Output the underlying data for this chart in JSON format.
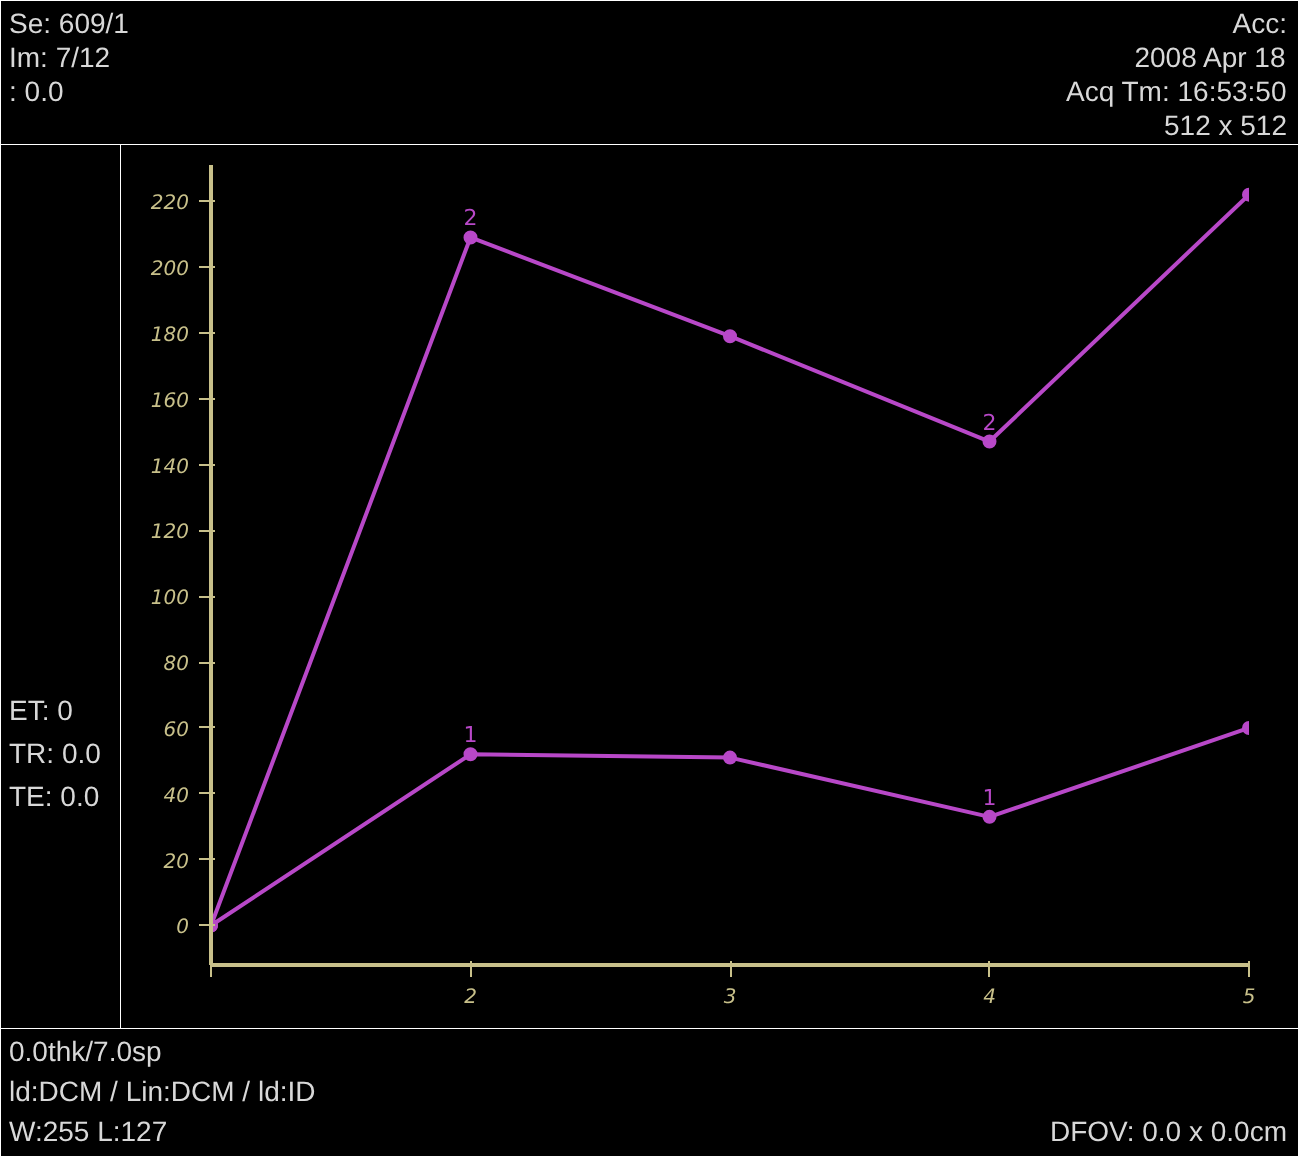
{
  "chart_data": {
    "type": "line",
    "x": [
      1,
      2,
      3,
      4,
      5
    ],
    "series": [
      {
        "name": "1",
        "color": "#b848c8",
        "values": [
          0,
          52,
          51,
          33,
          60
        ]
      },
      {
        "name": "2",
        "color": "#b848c8",
        "values": [
          0,
          209,
          179,
          147,
          222
        ]
      }
    ],
    "xlim": [
      1,
      5
    ],
    "xticks": [
      {
        "value": 1,
        "label": null
      },
      2,
      3,
      4,
      5
    ],
    "ylim": [
      -12,
      231
    ],
    "yticks": [
      0,
      20,
      40,
      60,
      80,
      100,
      120,
      140,
      160,
      180,
      200,
      220
    ],
    "grid": false,
    "marker": "circle",
    "line_style": "solid",
    "annotations": [
      "Se: 609/1",
      "Im: 7/12",
      ": 0.0",
      "Acc:",
      "2008 Apr 18",
      "Acq Tm: 16:53:50",
      "512 x 512",
      "ET: 0",
      "TR: 0.0",
      "TE: 0.0",
      "0.0thk/7.0sp",
      "ld:DCM / Lin:DCM / ld:ID",
      "W:255 L:127",
      "DFOV: 0.0 x 0.0cm"
    ]
  }
}
